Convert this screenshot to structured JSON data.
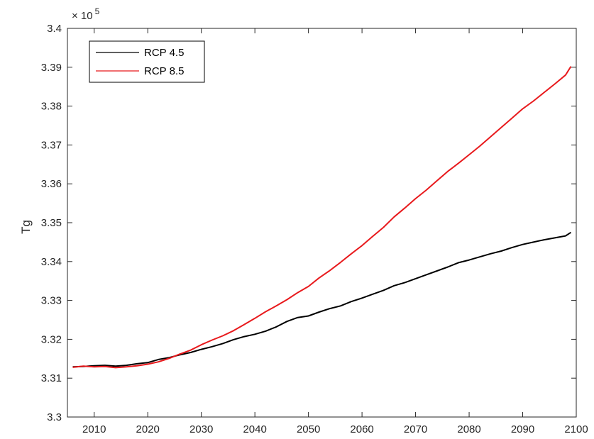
{
  "chart_data": {
    "type": "line",
    "title": "",
    "xlabel": "",
    "ylabel": "Tg",
    "exponent_label": "× 10",
    "exponent_power": "5",
    "xlim": [
      2005,
      2100
    ],
    "ylim": [
      3.3,
      3.4
    ],
    "xticks": [
      2010,
      2020,
      2030,
      2040,
      2050,
      2060,
      2070,
      2080,
      2090,
      2100
    ],
    "yticks": [
      3.3,
      3.31,
      3.32,
      3.33,
      3.34,
      3.35,
      3.36,
      3.37,
      3.38,
      3.39,
      3.4
    ],
    "xtick_labels": [
      "2010",
      "2020",
      "2030",
      "2040",
      "2050",
      "2060",
      "2070",
      "2080",
      "2090",
      "2100"
    ],
    "ytick_labels": [
      "3.3",
      "3.31",
      "3.32",
      "3.33",
      "3.34",
      "3.35",
      "3.36",
      "3.37",
      "3.38",
      "3.39",
      "3.4"
    ],
    "grid": false,
    "legend_position": "top-left",
    "series": [
      {
        "name": "RCP 4.5",
        "color": "#000000",
        "x": [
          2006,
          2008,
          2010,
          2012,
          2014,
          2016,
          2018,
          2020,
          2022,
          2024,
          2026,
          2028,
          2030,
          2032,
          2034,
          2036,
          2038,
          2040,
          2042,
          2044,
          2046,
          2048,
          2050,
          2052,
          2054,
          2056,
          2058,
          2060,
          2062,
          2064,
          2066,
          2068,
          2070,
          2072,
          2074,
          2076,
          2078,
          2080,
          2082,
          2084,
          2086,
          2088,
          2090,
          2092,
          2094,
          2096,
          2098,
          2099
        ],
        "y": [
          3.3129,
          3.313,
          3.3132,
          3.3133,
          3.3131,
          3.3133,
          3.3137,
          3.314,
          3.3148,
          3.3153,
          3.316,
          3.3166,
          3.3174,
          3.3181,
          3.3189,
          3.3199,
          3.3207,
          3.3213,
          3.3221,
          3.3232,
          3.3246,
          3.3256,
          3.326,
          3.327,
          3.3279,
          3.3286,
          3.3297,
          3.3306,
          3.3316,
          3.3326,
          3.3338,
          3.3346,
          3.3356,
          3.3366,
          3.3376,
          3.3386,
          3.3397,
          3.3404,
          3.3412,
          3.342,
          3.3427,
          3.3436,
          3.3444,
          3.345,
          3.3456,
          3.3461,
          3.3466,
          3.3475
        ]
      },
      {
        "name": "RCP 8.5",
        "color": "#e8191c",
        "x": [
          2006,
          2008,
          2010,
          2012,
          2014,
          2016,
          2018,
          2020,
          2022,
          2024,
          2026,
          2028,
          2030,
          2032,
          2034,
          2036,
          2038,
          2040,
          2042,
          2044,
          2046,
          2048,
          2050,
          2052,
          2054,
          2056,
          2058,
          2060,
          2062,
          2064,
          2066,
          2068,
          2070,
          2072,
          2074,
          2076,
          2078,
          2080,
          2082,
          2084,
          2086,
          2088,
          2090,
          2092,
          2094,
          2096,
          2098,
          2099
        ],
        "y": [
          3.3128,
          3.3131,
          3.3129,
          3.313,
          3.3127,
          3.3129,
          3.3132,
          3.3136,
          3.3142,
          3.3151,
          3.3162,
          3.3172,
          3.3186,
          3.3198,
          3.3209,
          3.3222,
          3.3238,
          3.3254,
          3.3271,
          3.3286,
          3.3302,
          3.332,
          3.3336,
          3.3358,
          3.3377,
          3.3398,
          3.342,
          3.3441,
          3.3465,
          3.3488,
          3.3515,
          3.3538,
          3.3562,
          3.3584,
          3.3608,
          3.3632,
          3.3653,
          3.3675,
          3.3697,
          3.3721,
          3.3745,
          3.3769,
          3.3793,
          3.3813,
          3.3835,
          3.3857,
          3.388,
          3.3902
        ]
      }
    ]
  }
}
